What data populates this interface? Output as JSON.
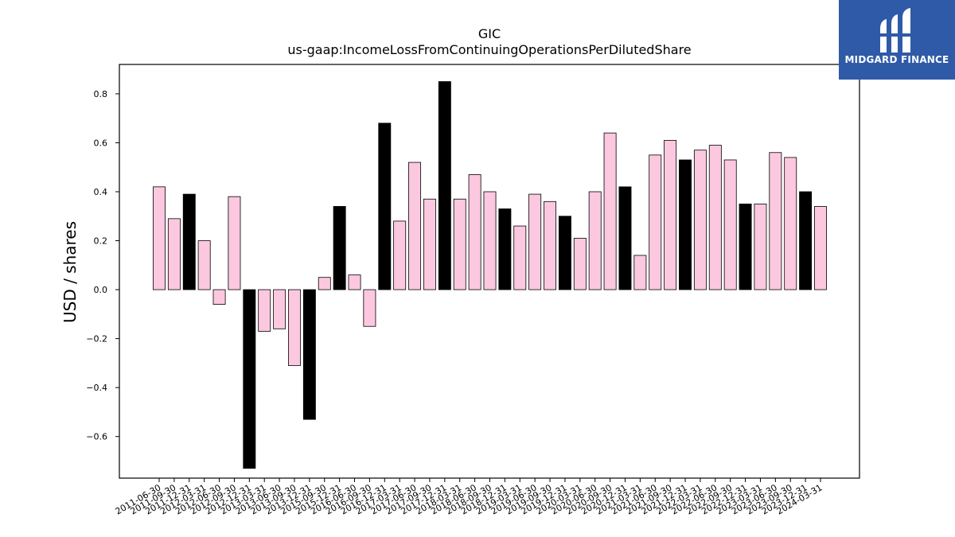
{
  "chart_data": {
    "type": "bar",
    "title": "GIC",
    "subtitle": "us-gaap:IncomeLossFromContinuingOperationsPerDilutedShare",
    "ylabel": "USD / shares",
    "xlabel": "",
    "ylim": [
      -0.77,
      0.92
    ],
    "yticks": [
      "0.8",
      "0.6",
      "0.4",
      "0.2",
      "0.0",
      "−0.2",
      "−0.4",
      "−0.6"
    ],
    "ytick_values": [
      0.8,
      0.6,
      0.4,
      0.2,
      0.0,
      -0.2,
      -0.4,
      -0.6
    ],
    "grid": false,
    "colors": {
      "quarter": "#fcc8e0",
      "annual": "#000000",
      "edge": "#000000"
    },
    "categories": [
      "2011-06-30",
      "2011-09-30",
      "2011-12-31",
      "2012-03-31",
      "2012-06-30",
      "2012-09-30",
      "2012-12-31",
      "2013-03-31",
      "2013-06-30",
      "2013-09-30",
      "2013-12-31",
      "2015-09-30",
      "2015-12-31",
      "2016-06-30",
      "2016-09-30",
      "2016-12-31",
      "2017-03-31",
      "2017-06-30",
      "2017-09-30",
      "2017-12-31",
      "2018-03-31",
      "2018-06-30",
      "2018-09-30",
      "2018-12-31",
      "2019-03-31",
      "2019-06-30",
      "2019-09-30",
      "2019-12-31",
      "2020-03-31",
      "2020-06-30",
      "2020-09-30",
      "2020-12-31",
      "2021-03-31",
      "2021-06-30",
      "2021-09-30",
      "2021-12-31",
      "2022-03-31",
      "2022-06-30",
      "2022-09-30",
      "2022-12-31",
      "2023-03-31",
      "2023-06-30",
      "2023-09-30",
      "2023-12-31",
      "2024-03-31"
    ],
    "values": [
      0.42,
      0.29,
      0.39,
      0.2,
      -0.06,
      0.38,
      -0.73,
      -0.17,
      -0.16,
      -0.31,
      -0.53,
      0.05,
      0.34,
      0.06,
      -0.15,
      0.68,
      0.28,
      0.52,
      0.37,
      0.85,
      0.37,
      0.47,
      0.4,
      0.33,
      0.26,
      0.39,
      0.36,
      0.3,
      0.21,
      0.4,
      0.64,
      0.42,
      0.14,
      0.55,
      0.61,
      0.53,
      0.57,
      0.59,
      0.53,
      0.35,
      0.35,
      0.56,
      0.54,
      0.4,
      0.34
    ],
    "annual": [
      false,
      false,
      true,
      false,
      false,
      false,
      true,
      false,
      false,
      false,
      true,
      false,
      true,
      false,
      false,
      true,
      false,
      false,
      false,
      true,
      false,
      false,
      false,
      true,
      false,
      false,
      false,
      true,
      false,
      false,
      false,
      true,
      false,
      false,
      false,
      true,
      false,
      false,
      false,
      true,
      false,
      false,
      false,
      true,
      false
    ]
  },
  "logo": {
    "text": "MIDGARD FINANCE",
    "icon": "midgard-logo-icon"
  }
}
